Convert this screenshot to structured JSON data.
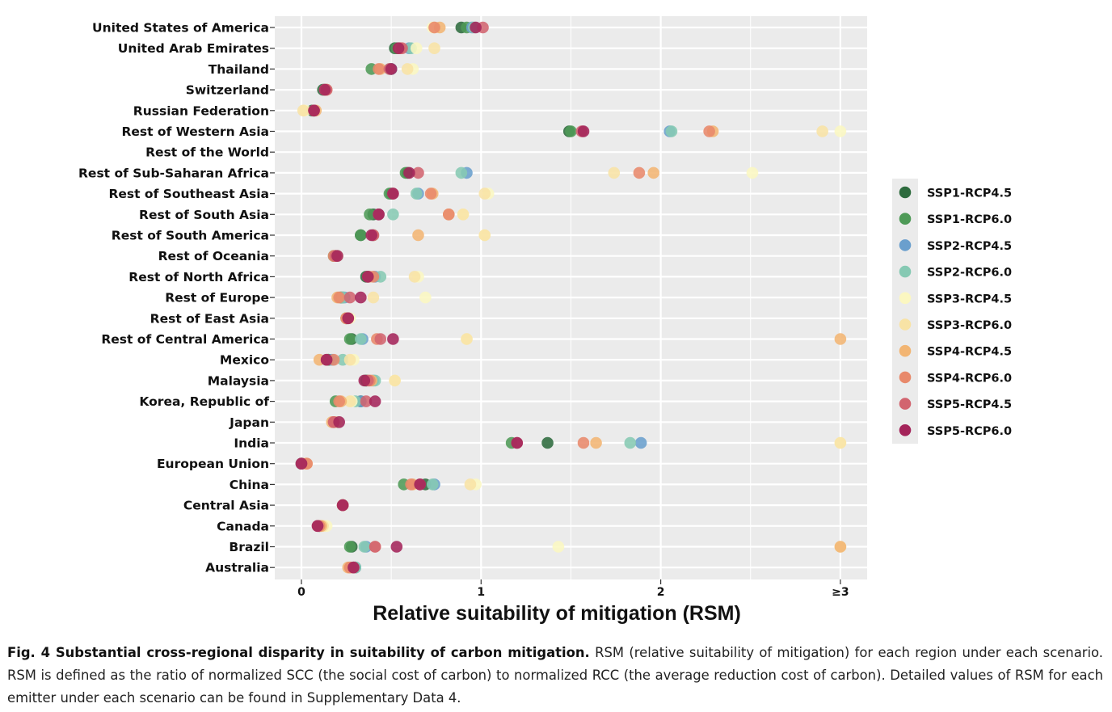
{
  "chart_data": {
    "type": "scatter",
    "xlabel": "Relative suitability of mitigation (RSM)",
    "ylabel": "",
    "x_ticks": [
      {
        "value": 0,
        "label": "0"
      },
      {
        "value": 1,
        "label": "1"
      },
      {
        "value": 2,
        "label": "2"
      },
      {
        "value": 3,
        "label": "≥3"
      }
    ],
    "xlim": [
      -0.15,
      3.15
    ],
    "grid": true,
    "legend_position": "right",
    "categories": [
      "United States of America",
      "United Arab Emirates",
      "Thailand",
      "Switzerland",
      "Russian Federation",
      "Rest of Western Asia",
      "Rest of the World",
      "Rest of Sub-Saharan Africa",
      "Rest of Southeast Asia",
      "Rest of South Asia",
      "Rest of South America",
      "Rest of Oceania",
      "Rest of North Africa",
      "Rest of Europe",
      "Rest of East Asia",
      "Rest of Central America",
      "Mexico",
      "Malaysia",
      "Korea, Republic of",
      "Japan",
      "India",
      "European Union",
      "China",
      "Central Asia",
      "Canada",
      "Brazil",
      "Australia"
    ],
    "series": [
      {
        "name": "SSP1-RCP4.5",
        "color": "#2e6b3e",
        "values": [
          0.89,
          0.52,
          0.5,
          0.12,
          0.06,
          1.49,
          null,
          0.59,
          0.5,
          0.4,
          0.33,
          0.19,
          0.36,
          0.22,
          0.25,
          0.28,
          0.15,
          0.36,
          0.33,
          0.2,
          1.37,
          0.0,
          0.69,
          0.23,
          0.1,
          0.28,
          0.3
        ]
      },
      {
        "name": "SSP1-RCP6.0",
        "color": "#4e9a57",
        "values": [
          0.92,
          0.53,
          0.39,
          0.13,
          0.07,
          1.5,
          null,
          0.58,
          0.49,
          0.38,
          0.33,
          0.18,
          0.37,
          0.23,
          0.25,
          0.27,
          0.15,
          0.36,
          0.19,
          0.2,
          1.17,
          0.0,
          0.57,
          0.23,
          0.1,
          0.27,
          0.29
        ]
      },
      {
        "name": "SSP2-RCP4.5",
        "color": "#6a9fcd",
        "values": [
          0.95,
          0.6,
          0.5,
          0.13,
          0.07,
          2.05,
          null,
          0.92,
          0.65,
          0.43,
          0.4,
          0.2,
          0.41,
          0.24,
          0.25,
          0.34,
          0.17,
          0.4,
          0.33,
          0.2,
          1.89,
          0.0,
          0.74,
          0.23,
          0.1,
          0.36,
          0.3
        ]
      },
      {
        "name": "SSP2-RCP6.0",
        "color": "#86c9b3",
        "values": [
          0.96,
          0.61,
          0.49,
          0.14,
          0.07,
          2.06,
          null,
          0.89,
          0.64,
          0.51,
          0.4,
          0.19,
          0.44,
          0.23,
          0.25,
          0.33,
          0.23,
          0.41,
          0.3,
          0.2,
          1.83,
          0.0,
          0.73,
          0.23,
          0.11,
          0.35,
          0.3
        ]
      },
      {
        "name": "SSP3-RCP4.5",
        "color": "#fbf7c1",
        "values": [
          0.73,
          0.64,
          0.62,
          0.14,
          0.02,
          3.0,
          null,
          2.51,
          1.04,
          0.9,
          1.02,
          0.2,
          0.65,
          0.69,
          0.27,
          0.92,
          0.29,
          0.52,
          0.28,
          0.2,
          3.0,
          0.02,
          0.97,
          0.23,
          0.14,
          1.43,
          0.29
        ]
      },
      {
        "name": "SSP3-RCP6.0",
        "color": "#f8e3a5",
        "values": [
          0.74,
          0.74,
          0.59,
          0.14,
          0.01,
          2.9,
          null,
          1.74,
          1.02,
          0.9,
          1.02,
          0.2,
          0.63,
          0.4,
          0.25,
          0.92,
          0.27,
          0.52,
          0.27,
          0.19,
          3.0,
          0.02,
          0.94,
          0.23,
          0.12,
          3.0,
          0.27
        ]
      },
      {
        "name": "SSP4-RCP4.5",
        "color": "#f2b573",
        "values": [
          0.77,
          0.55,
          0.44,
          0.13,
          0.08,
          2.29,
          null,
          1.96,
          0.73,
          0.82,
          0.65,
          0.19,
          0.38,
          0.2,
          0.25,
          3.0,
          0.1,
          0.39,
          0.22,
          0.17,
          1.64,
          0.03,
          0.62,
          0.23,
          0.11,
          3.0,
          0.26
        ]
      },
      {
        "name": "SSP4-RCP6.0",
        "color": "#e8896b",
        "values": [
          0.74,
          0.55,
          0.43,
          0.14,
          0.07,
          2.27,
          null,
          1.88,
          0.72,
          0.82,
          0.4,
          0.18,
          0.4,
          0.21,
          0.25,
          0.42,
          0.18,
          0.38,
          0.21,
          0.18,
          1.57,
          0.03,
          0.61,
          0.23,
          0.1,
          0.41,
          0.27
        ]
      },
      {
        "name": "SSP5-RCP4.5",
        "color": "#d2646f",
        "values": [
          1.01,
          0.56,
          0.49,
          0.14,
          0.07,
          1.56,
          null,
          0.65,
          0.51,
          0.43,
          0.4,
          0.19,
          0.37,
          0.27,
          0.26,
          0.44,
          0.14,
          0.37,
          0.36,
          0.18,
          1.2,
          0.0,
          0.66,
          0.23,
          0.09,
          0.41,
          0.29
        ]
      },
      {
        "name": "SSP5-RCP6.0",
        "color": "#a4245a",
        "values": [
          0.97,
          0.54,
          0.5,
          0.13,
          0.07,
          1.57,
          null,
          0.6,
          0.51,
          0.43,
          0.39,
          0.2,
          0.37,
          0.33,
          0.26,
          0.51,
          0.14,
          0.35,
          0.41,
          0.21,
          1.2,
          0.0,
          0.66,
          0.23,
          0.09,
          0.53,
          0.29
        ]
      }
    ]
  },
  "caption": {
    "bold": "Fig. 4 Substantial cross-regional disparity in suitability of carbon mitigation.",
    "text": " RSM (relative suitability of mitigation) for each region under each scenario. RSM is defined as the ratio of normalized SCC (the social cost of carbon) to normalized RCC (the average reduction cost of carbon). Detailed values of RSM for each emitter under each scenario can be found in Supplementary Data 4."
  }
}
